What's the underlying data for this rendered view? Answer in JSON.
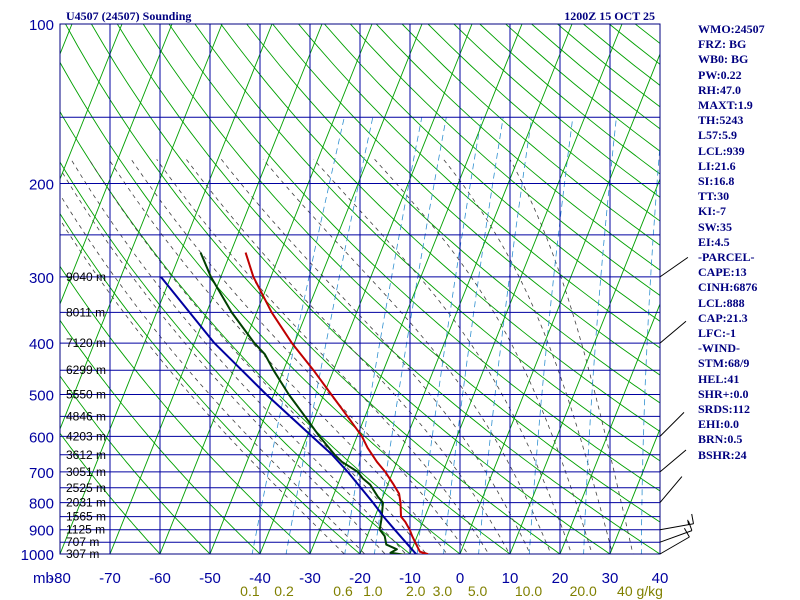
{
  "header": {
    "station": "U4507 (24507) Sounding",
    "time": "1200Z 15 OCT 25"
  },
  "stats": [
    "WMO:24507",
    "FRZ: BG",
    "WB0: BG",
    "PW:0.22",
    "RH:47.0",
    "MAXT:1.9",
    "TH:5243",
    "L57:5.9",
    "LCL:939",
    "LI:21.6",
    "SI:16.8",
    "TT:30",
    "KI:-7",
    "SW:35",
    "EI:4.5",
    "-PARCEL-",
    "CAPE:13",
    "CINH:6876",
    "LCL:888",
    "CAP:21.3",
    "LFC:-1",
    "-WIND-",
    "STM:68/9",
    "HEL:41",
    "SHR+:0.0",
    "SRDS:112",
    "EHI:0.0",
    "BRN:0.5",
    "BSHR:24"
  ],
  "chart_data": {
    "type": "line",
    "diagram": "skew-T log-P sounding",
    "pressure_axis": {
      "unit_label": "mb",
      "ticks": [
        100,
        200,
        300,
        400,
        500,
        600,
        700,
        800,
        900,
        1000
      ],
      "range": [
        100,
        1000
      ],
      "scale": "log"
    },
    "temperature_axis": {
      "ticks": [
        -80,
        -70,
        -60,
        -50,
        -40,
        -30,
        -20,
        -10,
        0,
        10,
        20,
        30,
        40
      ],
      "range": [
        -80,
        40
      ]
    },
    "mixing_ratio_labels": [
      "0.1",
      "0.2",
      "0.6",
      "1.0",
      "2.0",
      "3.0",
      "5.0",
      "10.0",
      "20.0",
      "40 g/kg"
    ],
    "height_labels": [
      {
        "p": 300,
        "text": "9040 m"
      },
      {
        "p": 350,
        "text": "8011 m"
      },
      {
        "p": 400,
        "text": "7120 m"
      },
      {
        "p": 450,
        "text": "6299 m"
      },
      {
        "p": 500,
        "text": "5550 m"
      },
      {
        "p": 550,
        "text": "4846 m"
      },
      {
        "p": 600,
        "text": "4203 m"
      },
      {
        "p": 650,
        "text": "3612 m"
      },
      {
        "p": 700,
        "text": "3051 m"
      },
      {
        "p": 750,
        "text": "2525 m"
      },
      {
        "p": 800,
        "text": "2031 m"
      },
      {
        "p": 850,
        "text": "1565 m"
      },
      {
        "p": 900,
        "text": "1125 m"
      },
      {
        "p": 950,
        "text": "707 m"
      },
      {
        "p": 1000,
        "text": "307 m"
      }
    ],
    "series": [
      {
        "key": "temperature",
        "color": "#c00000",
        "points": [
          [
            1005,
            -8.5
          ],
          [
            1000,
            -6.5
          ],
          [
            990,
            -8.2
          ],
          [
            960,
            -9.5
          ],
          [
            925,
            -11.0
          ],
          [
            900,
            -12.0
          ],
          [
            870,
            -13.5
          ],
          [
            850,
            -14.8
          ],
          [
            800,
            -16.0
          ],
          [
            770,
            -17.0
          ],
          [
            740,
            -18.8
          ],
          [
            700,
            -21.5
          ],
          [
            670,
            -24.0
          ],
          [
            630,
            -27.0
          ],
          [
            600,
            -29.0
          ],
          [
            550,
            -33.5
          ],
          [
            500,
            -38.5
          ],
          [
            450,
            -44.0
          ],
          [
            400,
            -50.5
          ],
          [
            350,
            -57.0
          ],
          [
            300,
            -63.5
          ],
          [
            270,
            -67.0
          ]
        ]
      },
      {
        "key": "dewpoint",
        "color": "#004000",
        "points": [
          [
            1005,
            -10.5
          ],
          [
            995,
            -14.0
          ],
          [
            980,
            -13.0
          ],
          [
            960,
            -15.5
          ],
          [
            925,
            -16.5
          ],
          [
            900,
            -18.0
          ],
          [
            860,
            -18.5
          ],
          [
            830,
            -19.0
          ],
          [
            800,
            -19.5
          ],
          [
            780,
            -21.0
          ],
          [
            740,
            -23.5
          ],
          [
            720,
            -25.5
          ],
          [
            700,
            -27.0
          ],
          [
            670,
            -31.0
          ],
          [
            650,
            -33.0
          ],
          [
            600,
            -37.5
          ],
          [
            550,
            -42.0
          ],
          [
            500,
            -47.0
          ],
          [
            450,
            -52.0
          ],
          [
            420,
            -55.0
          ],
          [
            400,
            -58.0
          ],
          [
            350,
            -65.0
          ],
          [
            300,
            -72.0
          ],
          [
            270,
            -76.0
          ]
        ]
      },
      {
        "key": "parcel",
        "color": "#0000a0",
        "points": [
          [
            1005,
            -8.5
          ],
          [
            900,
            -15.0
          ],
          [
            850,
            -18.3
          ],
          [
            800,
            -21.5
          ],
          [
            700,
            -29.0
          ],
          [
            650,
            -33.5
          ],
          [
            600,
            -39.0
          ],
          [
            500,
            -51.5
          ],
          [
            400,
            -66.0
          ],
          [
            300,
            -82.0
          ]
        ]
      }
    ],
    "wind_barbs": [
      {
        "p": 1000,
        "dir": 240,
        "kt": 10
      },
      {
        "p": 950,
        "dir": 250,
        "kt": 10
      },
      {
        "p": 900,
        "dir": 260,
        "kt": 15
      },
      {
        "p": 800,
        "dir": 220,
        "kt": 0
      },
      {
        "p": 700,
        "dir": 230,
        "kt": 0
      },
      {
        "p": 600,
        "dir": 225,
        "kt": 0
      },
      {
        "p": 400,
        "dir": 230,
        "kt": 0
      },
      {
        "p": 300,
        "dir": 235,
        "kt": 0
      }
    ]
  }
}
